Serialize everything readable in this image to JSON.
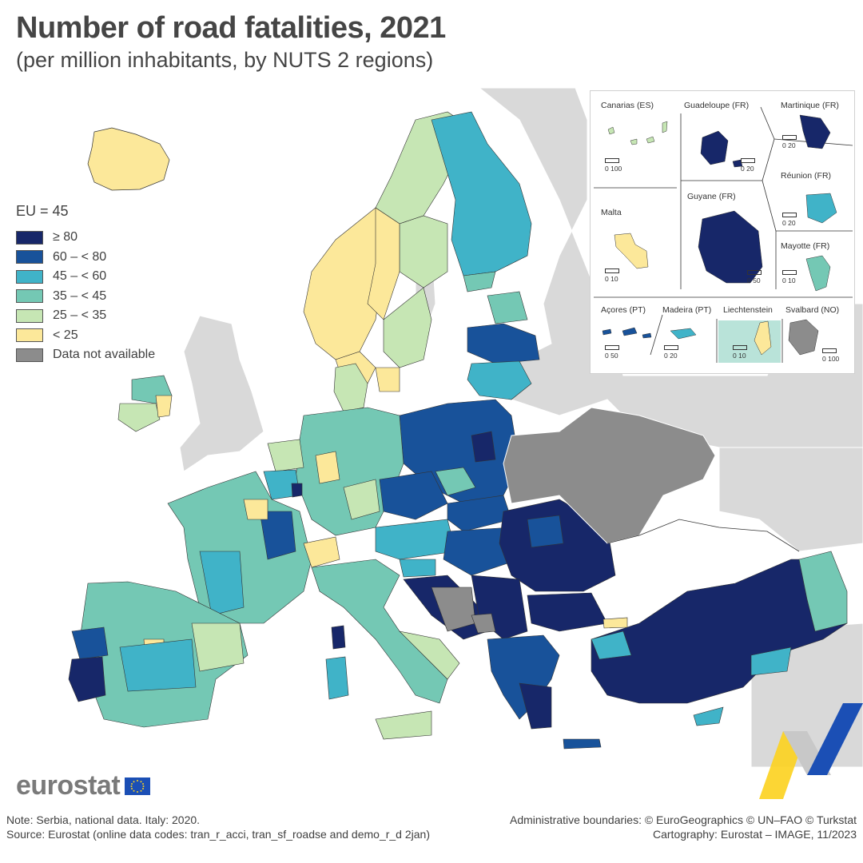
{
  "title": "Number of road fatalities, 2021",
  "subtitle": "(per million inhabitants, by NUTS 2 regions)",
  "legend": {
    "title": "EU = 45",
    "items": [
      {
        "label": "≥ 80",
        "color": "#172769"
      },
      {
        "label": "60 – < 80",
        "color": "#18529a"
      },
      {
        "label": "45 – < 60",
        "color": "#40b3c8"
      },
      {
        "label": "35 – < 45",
        "color": "#74c8b4"
      },
      {
        "label": "25 – < 35",
        "color": "#c6e6b4"
      },
      {
        "label": "< 25",
        "color": "#fce89a"
      },
      {
        "label": "Data not available",
        "color": "#8c8c8c"
      }
    ]
  },
  "colors": {
    "non_eu_land": "#d9d9d9",
    "sea": "#ffffff",
    "border": "#222222"
  },
  "insets": [
    {
      "name": "Canarias (ES)",
      "scale": "0   100"
    },
    {
      "name": "Guadeloupe (FR)",
      "scale": "0   20"
    },
    {
      "name": "Martinique (FR)",
      "scale": "0   20"
    },
    {
      "name": "Réunion (FR)",
      "scale": "0   20"
    },
    {
      "name": "Malta",
      "scale": "0   10"
    },
    {
      "name": "Guyane (FR)",
      "scale": "0   50"
    },
    {
      "name": "Mayotte (FR)",
      "scale": "0   10"
    },
    {
      "name": "Açores (PT)",
      "scale": "0   50"
    },
    {
      "name": "Madeira (PT)",
      "scale": "0   20"
    },
    {
      "name": "Liechtenstein",
      "scale": "0   10"
    },
    {
      "name": "Svalbard (NO)",
      "scale": "0 100"
    }
  ],
  "logo": "eurostat",
  "note": "Note: Serbia, national data. Italy: 2020.",
  "source": "Source: Eurostat (online data codes: tran_r_acci, tran_sf_roadse and demo_r_d 2jan)",
  "credits": [
    "Administrative boundaries: © EuroGeographics © UN–FAO © Turkstat",
    "Cartography: Eurostat – IMAGE, 11/2023"
  ]
}
